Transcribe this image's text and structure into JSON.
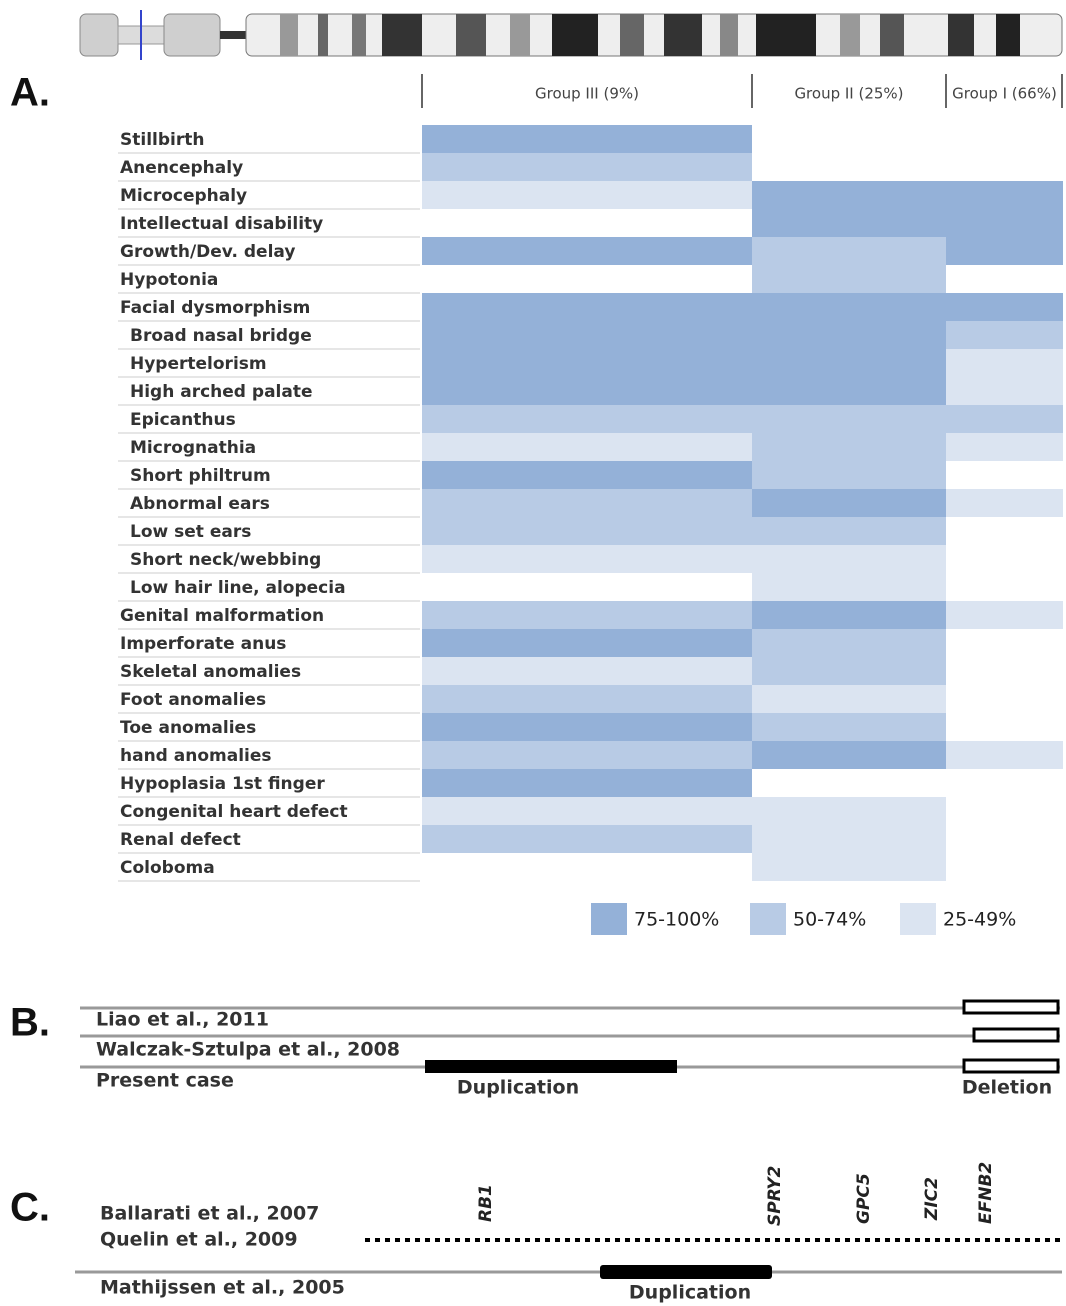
{
  "panel_a": {
    "label": "A.",
    "groups": [
      "Group III (9%)",
      "Group II (25%)",
      "Group I (66%)"
    ],
    "legend": [
      {
        "label": "75-100%",
        "color": "#94b1d8"
      },
      {
        "label": "50-74%",
        "color": "#b8cbe5"
      },
      {
        "label": "25-49%",
        "color": "#dbe4f1"
      }
    ],
    "rows": [
      {
        "label": "Stillbirth",
        "levels": [
          0,
          null,
          null
        ]
      },
      {
        "label": "Anencephaly",
        "levels": [
          1,
          null,
          null
        ]
      },
      {
        "label": "Microcephaly",
        "levels": [
          2,
          0,
          0
        ]
      },
      {
        "label": "Intellectual disability",
        "levels": [
          null,
          0,
          0
        ]
      },
      {
        "label": "Growth/Dev. delay",
        "levels": [
          0,
          1,
          0
        ]
      },
      {
        "label": "Hypotonia",
        "levels": [
          null,
          1,
          null
        ]
      },
      {
        "label": "Facial dysmorphism",
        "levels": [
          0,
          0,
          0
        ]
      },
      {
        "label": "Broad nasal bridge",
        "indent": true,
        "levels": [
          0,
          0,
          1
        ]
      },
      {
        "label": "Hypertelorism",
        "indent": true,
        "levels": [
          0,
          0,
          2
        ]
      },
      {
        "label": "High arched palate",
        "indent": true,
        "levels": [
          0,
          0,
          2
        ]
      },
      {
        "label": "Epicanthus",
        "indent": true,
        "levels": [
          1,
          1,
          1
        ]
      },
      {
        "label": "Micrognathia",
        "indent": true,
        "levels": [
          2,
          1,
          2
        ]
      },
      {
        "label": "Short philtrum",
        "indent": true,
        "levels": [
          0,
          1,
          null
        ]
      },
      {
        "label": "Abnormal ears",
        "indent": true,
        "levels": [
          1,
          0,
          2
        ]
      },
      {
        "label": "Low set ears",
        "indent": true,
        "levels": [
          1,
          1,
          null
        ]
      },
      {
        "label": "Short neck/webbing",
        "indent": true,
        "levels": [
          2,
          2,
          null
        ]
      },
      {
        "label": "Low hair line, alopecia",
        "indent": true,
        "levels": [
          null,
          2,
          null
        ]
      },
      {
        "label": "Genital malformation",
        "levels": [
          1,
          0,
          2
        ]
      },
      {
        "label": "Imperforate anus",
        "levels": [
          0,
          1,
          null
        ]
      },
      {
        "label": "Skeletal anomalies",
        "levels": [
          2,
          1,
          null
        ]
      },
      {
        "label": "Foot anomalies",
        "levels": [
          1,
          2,
          null
        ]
      },
      {
        "label": "Toe anomalies",
        "levels": [
          0,
          1,
          null
        ]
      },
      {
        "label": "hand anomalies",
        "levels": [
          1,
          0,
          2
        ]
      },
      {
        "label": "Hypoplasia 1st finger",
        "levels": [
          0,
          null,
          null
        ]
      },
      {
        "label": "Congenital heart defect",
        "levels": [
          2,
          2,
          null
        ]
      },
      {
        "label": "Renal defect",
        "levels": [
          1,
          2,
          null
        ]
      },
      {
        "label": "Coloboma",
        "levels": [
          null,
          2,
          null
        ]
      }
    ]
  },
  "panel_b": {
    "label": "B.",
    "rows": [
      "Liao et al., 2011",
      "Walczak-Sztulpa et al., 2008",
      "Present case"
    ],
    "duplication": "Duplication",
    "deletion": "Deletion"
  },
  "panel_c": {
    "label": "C.",
    "rows": [
      "Ballarati et al., 2007",
      "Quelin et al., 2009",
      "Mathijssen et al., 2005"
    ],
    "genes": [
      "RB1",
      "SPRY2",
      "GPC5",
      "ZIC2",
      "EFNB2"
    ],
    "duplication": "Duplication"
  }
}
